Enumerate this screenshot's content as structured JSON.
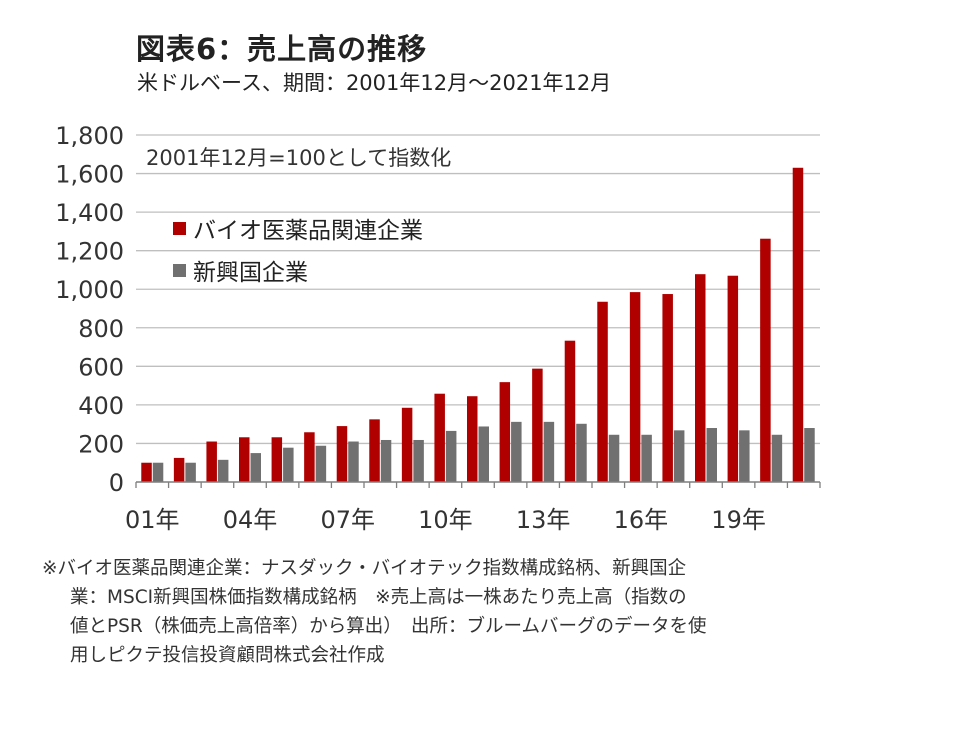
{
  "title": "図表6：売上高の推移",
  "subtitle": "米ドルベース、期間：2001年12月～2021年12月",
  "colors": {
    "bio": "#b10000",
    "emerging": "#707070",
    "grid": "#bfbfbf",
    "axis": "#7f7f7f"
  },
  "chart_data": {
    "type": "bar",
    "annotation": "2001年12月=100として指数化",
    "ylim": [
      0,
      1800
    ],
    "yticks": [
      0,
      200,
      400,
      600,
      800,
      1000,
      1200,
      1400,
      1600,
      1800
    ],
    "ytick_labels": [
      "0",
      "200",
      "400",
      "600",
      "800",
      "1,000",
      "1,200",
      "1,400",
      "1,600",
      "1,800"
    ],
    "x_tick_labels": [
      {
        "index": 0,
        "label": "01年"
      },
      {
        "index": 3,
        "label": "04年"
      },
      {
        "index": 6,
        "label": "07年"
      },
      {
        "index": 9,
        "label": "10年"
      },
      {
        "index": 12,
        "label": "13年"
      },
      {
        "index": 15,
        "label": "16年"
      },
      {
        "index": 18,
        "label": "19年"
      }
    ],
    "categories": [
      "01",
      "02",
      "03",
      "04",
      "05",
      "06",
      "07",
      "08",
      "09",
      "10",
      "11",
      "12",
      "13",
      "14",
      "15",
      "16",
      "17",
      "18",
      "19",
      "20",
      "21"
    ],
    "grid": true,
    "legend_position": "top-left",
    "series": [
      {
        "name": "バイオ医薬品関連企業",
        "color": "#b10000",
        "values": [
          100,
          125,
          210,
          232,
          232,
          258,
          290,
          325,
          385,
          458,
          445,
          518,
          588,
          733,
          935,
          985,
          975,
          1078,
          1070,
          1262,
          1630
        ]
      },
      {
        "name": "新興国企業",
        "color": "#707070",
        "values": [
          100,
          100,
          115,
          150,
          178,
          188,
          210,
          218,
          218,
          265,
          288,
          312,
          312,
          302,
          245,
          245,
          268,
          280,
          268,
          245,
          280
        ]
      }
    ]
  },
  "note": {
    "line1": "※バイオ医薬品関連企業：ナスダック・バイオテック指数構成銘柄、新興国企",
    "line2": "業：MSCI新興国株価指数構成銘柄　※売上高は一株あたり売上高（指数の",
    "line3": "値とPSR（株価売上高倍率）から算出）　出所：ブルームバーグのデータを使",
    "line4": "用しピクテ投信投資顧問株式会社作成"
  }
}
